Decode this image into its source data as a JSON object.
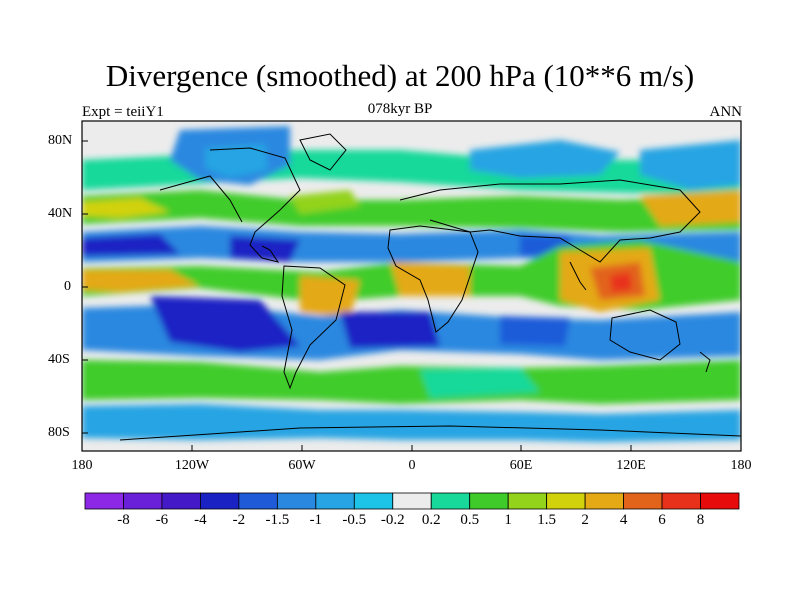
{
  "title": "Divergence (smoothed) at 200 hPa (10**6 m/s)",
  "left_label": "Expt = teiiY1",
  "center_label": "078kyr BP",
  "right_label": "ANN",
  "lat_ticks": [
    "80N",
    "40N",
    "0",
    "40S",
    "80S"
  ],
  "lon_ticks": [
    "180",
    "120W",
    "60W",
    "0",
    "60E",
    "120E",
    "180"
  ],
  "colorbar": {
    "labels": [
      "-8",
      "-6",
      "-4",
      "-2",
      "-1.5",
      "-1",
      "-0.5",
      "-0.2",
      "0.2",
      "0.5",
      "1",
      "1.5",
      "2",
      "4",
      "6",
      "8"
    ],
    "colors": [
      "#8c28e6",
      "#6a1fd8",
      "#4419c8",
      "#1a22c4",
      "#1f5bd9",
      "#2a88e0",
      "#26a4e3",
      "#1ec3e8",
      "#ececec",
      "#19d99a",
      "#3fcc2a",
      "#93d31b",
      "#d1d20c",
      "#e4a914",
      "#e2641b",
      "#e8311b",
      "#e80b0b"
    ]
  },
  "colors": {
    "land_outline": "#000000",
    "neutral": "#ececec",
    "strong_divergence": "#e2641b",
    "strong_convergence": "#1a22c4"
  }
}
